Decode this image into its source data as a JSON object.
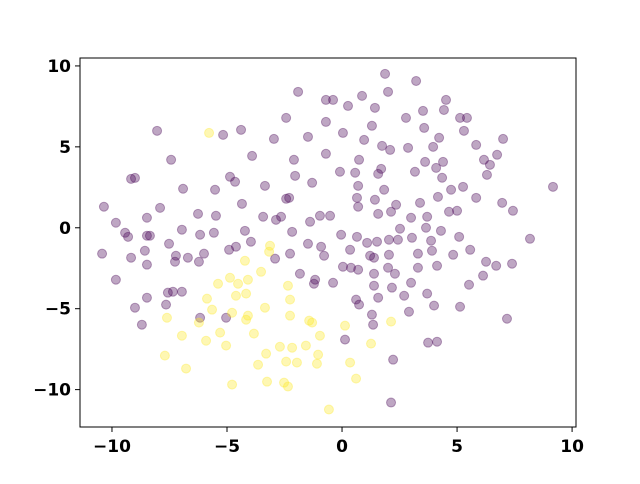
{
  "chart_data": {
    "type": "scatter",
    "xlim": [
      -11.39,
      10.17
    ],
    "ylim": [
      -12.31,
      10.49
    ],
    "xticks": [
      {
        "value": -10,
        "label": "−10"
      },
      {
        "value": -5,
        "label": "−5"
      },
      0,
      5,
      10
    ],
    "yticks": [
      {
        "value": -10,
        "label": "−10"
      },
      {
        "value": -5,
        "label": "−5"
      },
      0,
      5,
      10
    ],
    "alpha": 0.35,
    "series": [
      {
        "color": "#440154",
        "x": [
          1.87,
          3.22,
          -1.91,
          -0.7,
          -0.39,
          0.87,
          2.0,
          4.52,
          4.43,
          5.13,
          5.43,
          0.26,
          1.43,
          2.78,
          3.52,
          -2.43,
          -0.7,
          -8.04,
          -5.17,
          -4.39,
          0.04,
          1.3,
          3.57,
          4.22,
          5.3,
          5.83,
          7.0,
          -2.96,
          -1.48,
          0.96,
          1.74,
          2.87,
          2.09,
          3.96,
          -7.43,
          -3.91,
          -2.09,
          -0.7,
          0.74,
          1.7,
          3.61,
          4.39,
          6.17,
          6.74,
          6.43,
          6.3,
          -9.17,
          -9.0,
          -6.91,
          -5.52,
          -4.87,
          -4.65,
          -3.35,
          -2.04,
          -1.3,
          -0.09,
          0.57,
          0.7,
          1.57,
          1.83,
          3.17,
          4.09,
          4.35,
          4.74,
          5.26,
          9.17,
          -2.3,
          -2.43,
          0.65,
          0.7,
          1.43,
          2.13,
          2.35,
          3.39,
          4.17,
          4.65,
          5.0,
          5.83,
          6.96,
          7.43,
          -10.35,
          -8.48,
          -7.91,
          -9.83,
          -6.26,
          -5.48,
          -4.35,
          -3.43,
          -2.87,
          -2.65,
          -4.22,
          -1.39,
          -0.96,
          -0.52,
          1.57,
          3.0,
          3.7,
          2.52,
          3.65,
          -9.43,
          -9.3,
          -8.48,
          -8.35,
          -7.52,
          -6.96,
          -6.17,
          -5.57,
          -4.61,
          -3.96,
          -2.17,
          -1.48,
          -0.91,
          -0.04,
          0.65,
          1.09,
          1.52,
          2.04,
          2.43,
          3.04,
          3.87,
          4.3,
          5.09,
          5.57,
          8.17,
          -10.43,
          -9.17,
          -8.57,
          -7.22,
          -6.7,
          -6.0,
          -4.91,
          -2.91,
          -2.26,
          -0.78,
          0.35,
          1.22,
          1.39,
          2.04,
          3.3,
          3.91,
          4.83,
          6.26,
          6.7,
          -9.83,
          -8.48,
          -7.26,
          -6.22,
          -1.83,
          -1.17,
          0.04,
          0.39,
          0.7,
          1.39,
          2.0,
          2.3,
          3.3,
          4.13,
          7.39,
          6.13,
          -8.48,
          -7.57,
          -7.35,
          -6.96,
          -7.65,
          -9.0,
          -8.7,
          -6.17,
          -5.04,
          -1.22,
          -0.39,
          0.61,
          0.74,
          1.39,
          1.57,
          2.17,
          2.7,
          3.0,
          3.7,
          4.0,
          5.13,
          5.52,
          1.3,
          1.35,
          2.91,
          0.13,
          3.74,
          4.13,
          7.17,
          2.22,
          2.13
        ],
        "y": [
          9.51,
          9.07,
          8.4,
          7.9,
          7.9,
          8.15,
          8.4,
          7.9,
          7.28,
          6.79,
          6.79,
          7.53,
          7.41,
          6.79,
          7.22,
          6.79,
          6.54,
          5.99,
          5.74,
          6.05,
          5.86,
          6.3,
          6.17,
          5.56,
          5.99,
          5.12,
          5.49,
          5.49,
          5.62,
          5.43,
          5.06,
          4.94,
          4.81,
          5.0,
          4.2,
          4.44,
          4.2,
          4.57,
          4.2,
          3.64,
          4.07,
          4.07,
          4.2,
          4.51,
          3.89,
          3.27,
          3.02,
          3.08,
          2.41,
          2.35,
          3.15,
          2.84,
          2.59,
          3.21,
          2.78,
          3.46,
          3.4,
          2.59,
          3.33,
          2.35,
          3.46,
          3.7,
          3.09,
          2.35,
          2.53,
          2.53,
          1.85,
          1.79,
          1.85,
          1.3,
          1.73,
          0.99,
          1.42,
          1.54,
          1.91,
          0.99,
          1.05,
          1.85,
          1.54,
          1.05,
          1.3,
          0.62,
          1.23,
          0.31,
          0.86,
          0.74,
          1.48,
          0.68,
          0.49,
          0.68,
          -0.19,
          0.37,
          0.74,
          0.74,
          0.86,
          0.62,
          0.68,
          -0.06,
          0.0,
          -0.31,
          -0.56,
          -0.49,
          -0.49,
          -0.99,
          -0.12,
          -0.43,
          -0.31,
          -1.17,
          -0.86,
          -0.25,
          -0.99,
          -1.17,
          -0.43,
          -0.56,
          -0.93,
          -0.86,
          -0.74,
          -0.74,
          -0.62,
          -0.8,
          -0.19,
          -0.56,
          -1.36,
          -0.68,
          -1.6,
          -1.85,
          -1.42,
          -1.73,
          -1.85,
          -1.6,
          -1.36,
          -1.91,
          -1.6,
          -1.73,
          -1.36,
          -1.73,
          -1.85,
          -1.67,
          -1.6,
          -1.42,
          -1.67,
          -2.1,
          -2.35,
          -3.21,
          -2.28,
          -2.1,
          -2.1,
          -2.84,
          -3.21,
          -2.41,
          -2.47,
          -2.59,
          -2.84,
          -2.47,
          -2.84,
          -2.47,
          -2.35,
          -2.22,
          -2.96,
          -4.32,
          -4.01,
          -3.95,
          -3.95,
          -4.75,
          -4.94,
          -5.99,
          -5.56,
          -5.56,
          -3.46,
          -3.4,
          -4.44,
          -4.75,
          -3.58,
          -4.32,
          -3.7,
          -4.2,
          -3.4,
          -4.07,
          -4.81,
          -4.88,
          -3.52,
          -5.37,
          -5.99,
          -5.19,
          -6.91,
          -7.1,
          -7.04,
          -5.62,
          -8.15,
          -10.8
        ]
      },
      {
        "color": "#fde725",
        "x": [
          -5.78,
          -3.17,
          -3.13,
          -4.22,
          -3.52,
          -4.09,
          -4.87,
          -4.52,
          -4.17,
          -4.61,
          -5.39,
          -5.87,
          -5.65,
          -4.78,
          -4.09,
          -3.35,
          -2.35,
          -2.26,
          -2.26,
          -1.43,
          -1.3,
          -0.96,
          0.13,
          1.26,
          2.13,
          -7.61,
          -7.7,
          -6.96,
          -6.22,
          -5.91,
          -5.3,
          -4.17,
          -3.83,
          -3.3,
          -2.7,
          -2.43,
          -2.17,
          -1.57,
          -1.04,
          0.35,
          0.61,
          -0.57,
          -4.78,
          -6.78,
          -3.26,
          -2.52,
          -2.35,
          -1.96,
          -1.09,
          -5.04,
          -3.65
        ],
        "y": [
          5.86,
          -1.48,
          -1.11,
          -2.04,
          -2.72,
          -3.21,
          -3.09,
          -3.46,
          -4.07,
          -4.2,
          -3.46,
          -4.38,
          -5.06,
          -5.25,
          -5.43,
          -4.94,
          -3.58,
          -4.44,
          -5.43,
          -5.74,
          -5.86,
          -6.67,
          -6.05,
          -7.16,
          -5.8,
          -5.56,
          -7.9,
          -6.67,
          -5.86,
          -6.98,
          -6.48,
          -5.68,
          -6.54,
          -7.78,
          -7.35,
          -8.27,
          -7.41,
          -7.28,
          -7.84,
          -8.33,
          -9.32,
          -11.23,
          -9.69,
          -8.7,
          -9.51,
          -9.57,
          -9.81,
          -8.33,
          -8.4,
          -7.28,
          -8.46
        ]
      }
    ]
  }
}
